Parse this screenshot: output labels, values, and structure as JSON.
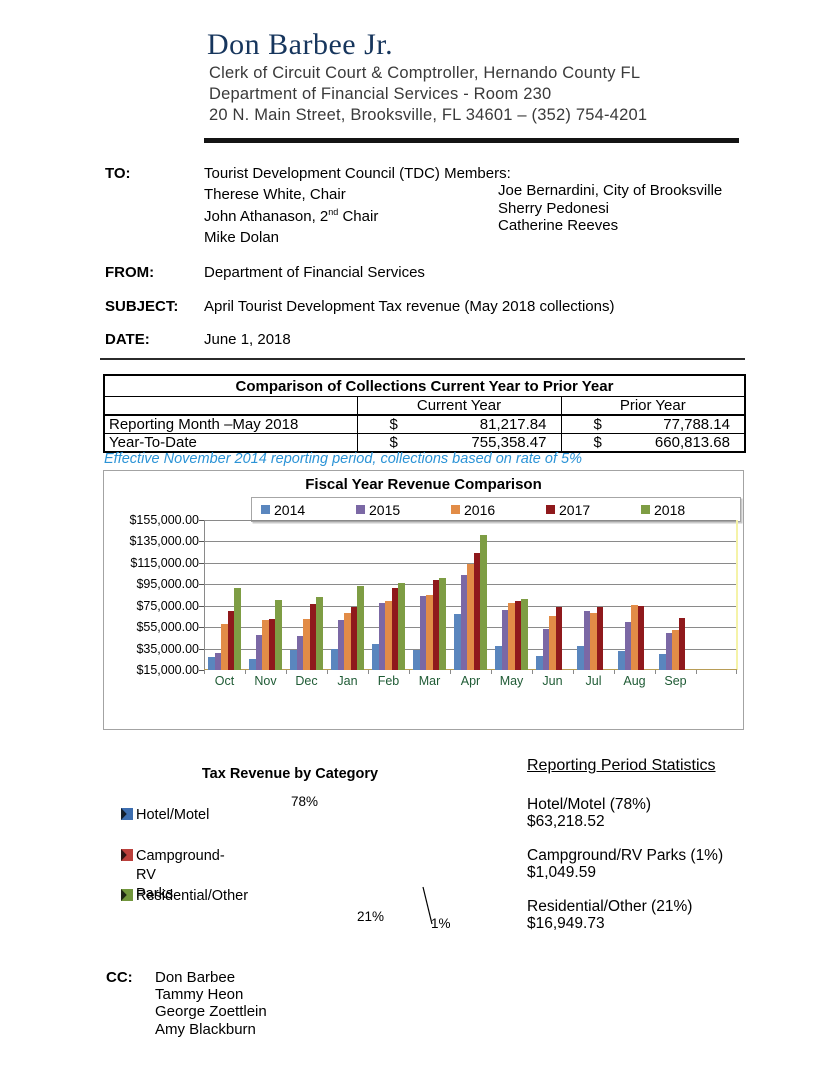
{
  "header": {
    "name": "Don Barbee Jr.",
    "line1": "Clerk of Circuit Court & Comptroller, Hernando County FL",
    "line2": "Department of Financial Services - Room 230",
    "line3": "20 N. Main Street, Brooksville, FL 34601 – (352) 754-4201"
  },
  "memo": {
    "to_label": "TO:",
    "to_value": "Tourist Development Council (TDC) Members:",
    "to_left": [
      {
        "pre": "Therese White, Chair",
        "sup": "",
        "post": ""
      },
      {
        "pre": "John Athanason, 2",
        "sup": "nd",
        "post": " Chair"
      },
      {
        "pre": "Mike Dolan",
        "sup": "",
        "post": ""
      }
    ],
    "to_right": [
      "Joe Bernardini, City of Brooksville",
      "Sherry Pedonesi",
      "Catherine Reeves"
    ],
    "from_label": "FROM:",
    "from_value": "Department of Financial Services",
    "subject_label": "SUBJECT:",
    "subject_value": "April Tourist Development Tax revenue (May 2018 collections)",
    "date_label": "DATE:",
    "date_value": "June 1, 2018"
  },
  "table": {
    "title": "Comparison of Collections Current Year to Prior Year",
    "columns": [
      "",
      "Current Year",
      "Prior Year"
    ],
    "rows": [
      {
        "label": "Reporting Month –May 2018",
        "current_symbol": "$",
        "current": "81,217.84",
        "prior_symbol": "$",
        "prior": "77,788.14"
      },
      {
        "label": "Year-To-Date",
        "current_symbol": "$",
        "current": "755,358.47",
        "prior_symbol": "$",
        "prior": "660,813.68"
      }
    ]
  },
  "note": "Effective November 2014 reporting period, collections based on rate of 5%",
  "chart_data": [
    {
      "type": "bar",
      "title": "Fiscal Year Revenue Comparison",
      "categories": [
        "Oct",
        "Nov",
        "Dec",
        "Jan",
        "Feb",
        "Mar",
        "Apr",
        "May",
        "Jun",
        "Jul",
        "Aug",
        "Sep"
      ],
      "series": [
        {
          "name": "2014",
          "color": "#5A86BE",
          "values": [
            27000,
            25000,
            34000,
            35000,
            39000,
            34000,
            67000,
            37000,
            28000,
            37000,
            33000,
            30000
          ]
        },
        {
          "name": "2015",
          "color": "#7B68A5",
          "values": [
            31000,
            48000,
            47000,
            62000,
            78000,
            84000,
            104000,
            71000,
            53000,
            70000,
            60000,
            50000
          ]
        },
        {
          "name": "2016",
          "color": "#E28C47",
          "values": [
            58000,
            62000,
            63000,
            68000,
            79000,
            85000,
            114000,
            78000,
            65000,
            68000,
            76000,
            52000
          ]
        },
        {
          "name": "2017",
          "color": "#8F191C",
          "values": [
            70000,
            63000,
            77000,
            74000,
            92000,
            99000,
            124000,
            79000,
            74000,
            74000,
            75000,
            64000
          ]
        },
        {
          "name": "2018",
          "color": "#7E9D44",
          "values": [
            92000,
            80000,
            83000,
            93000,
            96000,
            101000,
            141000,
            81218,
            null,
            null,
            null,
            null
          ]
        }
      ],
      "ylim": [
        15000,
        155000
      ],
      "ytick_step": 20000,
      "ytick_format": "$#,##0.00",
      "legend_position": "top",
      "grid": true,
      "category_label_color": "#1F5B35"
    },
    {
      "type": "pie",
      "title": "Tax Revenue by Category",
      "slices": [
        {
          "label": "Hotel/Motel",
          "legend_lines": [
            "Hotel/Motel"
          ],
          "pct": 78,
          "pct_label": "78%",
          "value": 63218.52,
          "color": "#3D6EB0"
        },
        {
          "label": "Campground-RV Parks",
          "legend_lines": [
            "Campground-RV",
            "Parks"
          ],
          "pct": 1,
          "pct_label": "1%",
          "value": 1049.59,
          "color": "#BB403C"
        },
        {
          "label": "Residential/Other",
          "legend_lines": [
            "Residential/Other"
          ],
          "pct": 21,
          "pct_label": "21%",
          "value": 16949.73,
          "color": "#71963C"
        }
      ]
    }
  ],
  "stats": {
    "title": "Reporting Period Statistics",
    "items": [
      {
        "line1": "Hotel/Motel (78%)",
        "line2": "$63,218.52"
      },
      {
        "line1": "Campground/RV Parks (1%)",
        "line2": "$1,049.59"
      },
      {
        "line1": "Residential/Other (21%)",
        "line2": "$16,949.73"
      }
    ]
  },
  "cc": {
    "label": "CC:",
    "names": [
      "Don Barbee",
      "Tammy Heon",
      "George Zoettlein",
      "Amy Blackburn"
    ]
  }
}
